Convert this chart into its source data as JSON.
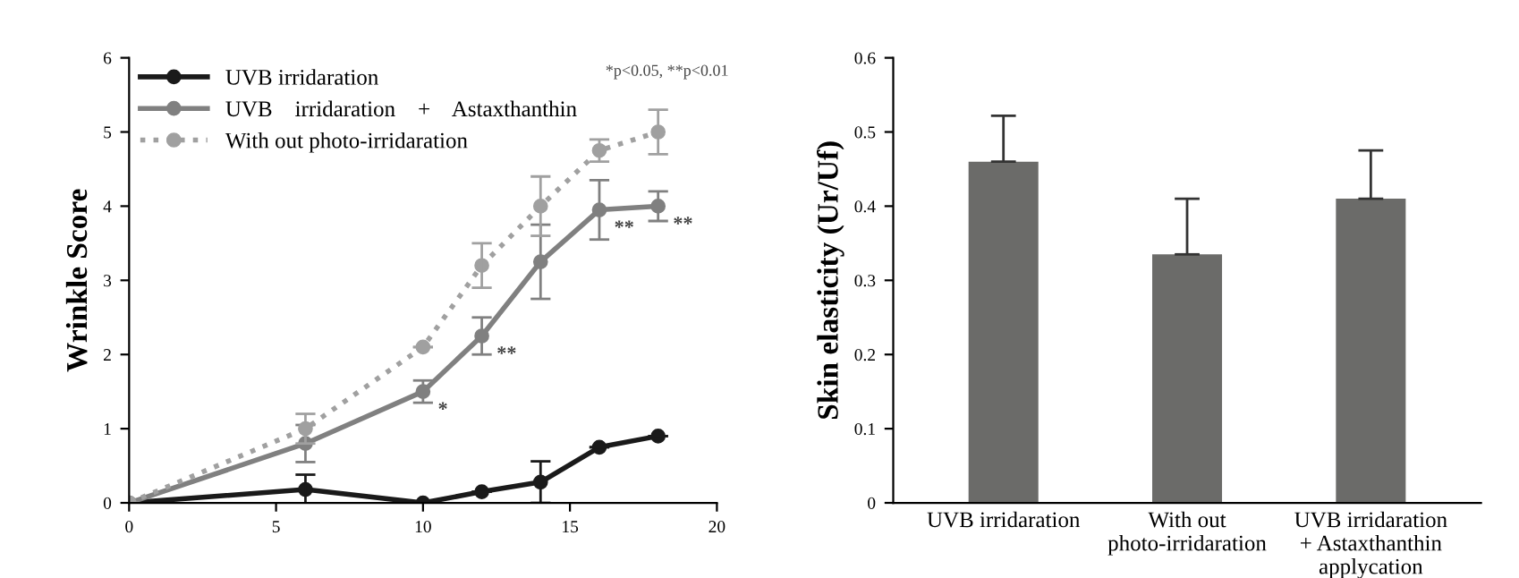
{
  "chart_data": [
    {
      "type": "line",
      "ylabel": "Wrinkle Score",
      "xlim": [
        0,
        20
      ],
      "xticks": [
        0,
        5,
        10,
        15,
        20
      ],
      "ylim": [
        0,
        6
      ],
      "yticks": [
        0,
        1,
        2,
        3,
        4,
        5,
        6
      ],
      "legend": "top left",
      "grid": false,
      "marker": "circle",
      "x": [
        0,
        6,
        10,
        12,
        14,
        16,
        18
      ],
      "series": [
        {
          "name": "UVB irridaration",
          "color": "#1a1a1a",
          "line_style": "solid",
          "values": [
            0,
            0.18,
            0,
            0.15,
            0.28,
            0.75,
            0.9
          ],
          "errors": [
            null,
            0.2,
            null,
            null,
            0.28,
            null,
            null
          ]
        },
        {
          "name": "UVB    irridaration    +    Astaxthanthin",
          "color": "#808080",
          "line_style": "solid",
          "values": [
            0,
            0.8,
            1.5,
            2.25,
            3.25,
            3.95,
            4.0
          ],
          "errors": [
            null,
            0.25,
            0.15,
            0.25,
            0.5,
            0.4,
            0.2
          ]
        },
        {
          "name": "With out photo-irridaration",
          "color": "#a0a0a0",
          "line_style": "dotted",
          "values": [
            0,
            1.0,
            2.1,
            3.2,
            4.0,
            4.75,
            5.0
          ],
          "errors": [
            null,
            0.2,
            null,
            0.3,
            0.4,
            0.15,
            0.3
          ]
        }
      ],
      "annotations": [
        "*p<0.05, **p<0.01",
        {
          "text": "*",
          "x": 10,
          "y": 1.5
        },
        {
          "text": "**",
          "x": 12,
          "y": 2.25
        },
        {
          "text": "**",
          "x": 16,
          "y": 3.95
        },
        {
          "text": "**",
          "x": 18,
          "y": 4.0
        }
      ]
    },
    {
      "type": "bar",
      "ylabel": "Skin elasticity (Ur/Uf)",
      "ylim": [
        0,
        0.6
      ],
      "yticks": [
        0,
        0.1,
        0.2,
        0.3,
        0.4,
        0.5,
        0.6
      ],
      "grid": false,
      "categories": [
        "UVB irridaration",
        "With out\nphoto-irridaration",
        "UVB irridaration\n+ Astaxthanthin\napplycation"
      ],
      "values": [
        0.46,
        0.335,
        0.41
      ],
      "color": "#6b6b69",
      "errors": [
        [
          0.46,
          0.522
        ],
        [
          0.335,
          0.41
        ],
        [
          0.41,
          0.475
        ]
      ]
    }
  ]
}
